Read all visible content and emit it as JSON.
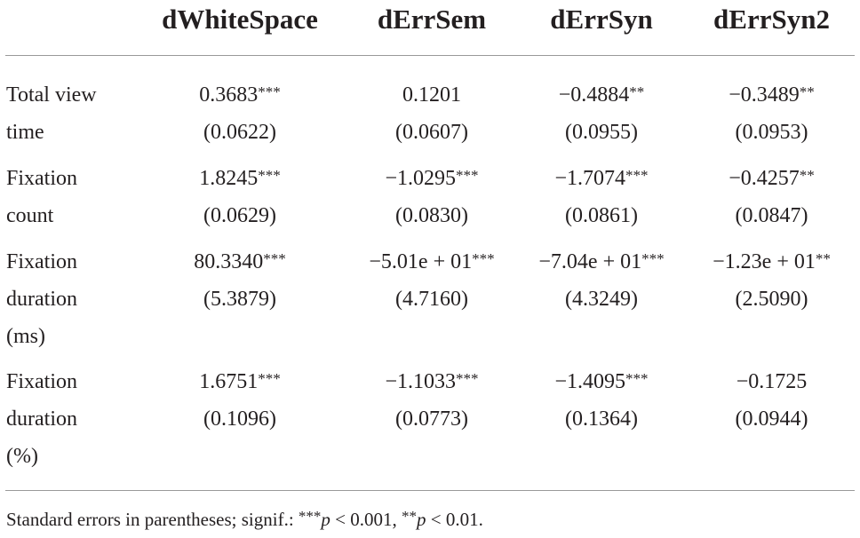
{
  "header": {
    "columns": [
      "dWhiteSpace",
      "dErrSem",
      "dErrSyn",
      "dErrSyn2"
    ]
  },
  "table": {
    "rows": [
      {
        "label": [
          "Total view",
          "time"
        ],
        "cells": [
          {
            "estimate": "0.3683",
            "stars": "***",
            "se": "(0.0622)"
          },
          {
            "estimate": "0.1201",
            "se": "(0.0607)"
          },
          {
            "estimate": "−0.4884",
            "stars": "**",
            "se": "(0.0955)"
          },
          {
            "estimate": "−0.3489",
            "stars": "**",
            "se": "(0.0953)"
          }
        ]
      },
      {
        "label": [
          "Fixation",
          "count"
        ],
        "cells": [
          {
            "estimate": "1.8245",
            "stars": "***",
            "se": "(0.0629)"
          },
          {
            "estimate": "−1.0295",
            "stars": "***",
            "se": "(0.0830)"
          },
          {
            "estimate": "−1.7074",
            "stars": "***",
            "se": "(0.0861)"
          },
          {
            "estimate": "−0.4257",
            "stars": "**",
            "se": "(0.0847)"
          }
        ]
      },
      {
        "label": [
          "Fixation",
          "duration",
          "(ms)"
        ],
        "cells": [
          {
            "estimate": "80.3340",
            "stars": "***",
            "se": "(5.3879)"
          },
          {
            "estimate": "−5.01e + 01",
            "stars": "***",
            "se": "(4.7160)"
          },
          {
            "estimate": "−7.04e + 01",
            "stars": "***",
            "se": "(4.3249)"
          },
          {
            "estimate": "−1.23e + 01",
            "stars": "**",
            "se": "(2.5090)"
          }
        ]
      },
      {
        "label": [
          "Fixation",
          "duration",
          "(%)"
        ],
        "cells": [
          {
            "estimate": "1.6751",
            "stars": "***",
            "se": "(0.1096)"
          },
          {
            "estimate": "−1.1033",
            "stars": "***",
            "se": "(0.0773)"
          },
          {
            "estimate": "−1.4095",
            "stars": "***",
            "se": "(0.1364)"
          },
          {
            "estimate": "−0.1725",
            "se": "(0.0944)"
          }
        ]
      }
    ]
  },
  "footnote": {
    "text": "Standard errors in parentheses; signif.: ",
    "stars1": "***",
    "p1": "p",
    "cond1": " < 0.001, ",
    "stars2": "**",
    "p2": "p",
    "cond2": " < 0.01."
  }
}
